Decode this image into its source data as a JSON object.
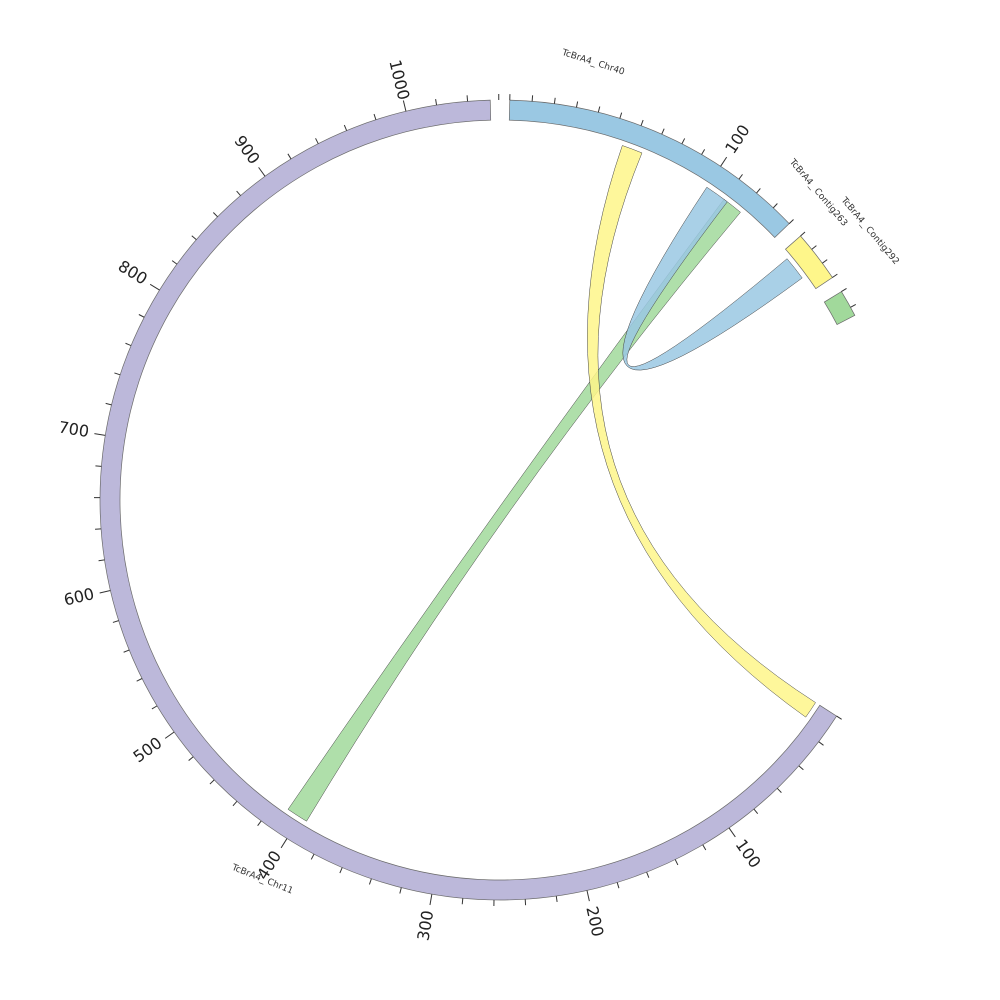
{
  "chart_data": {
    "type": "chord",
    "segments": [
      {
        "id": "chr11",
        "label": "TcBrA4_ Chr11",
        "length": 1080,
        "color": "#bcb8da",
        "major_ticks": [
          "100",
          "200",
          "300",
          "400",
          "500",
          "600",
          "700",
          "800",
          "900",
          "1000"
        ]
      },
      {
        "id": "chr40",
        "label": "TcBrA4_ Chr40",
        "length": 140,
        "color": "#9ac8e3",
        "major_ticks": [
          "100"
        ]
      },
      {
        "id": "contig263",
        "label": "TcBrA4_ Contig263",
        "length": 30,
        "color": "#fef68a",
        "major_ticks": []
      },
      {
        "id": "contig292",
        "label": "TcBrA4_ Contig292",
        "length": 15,
        "color": "#a1d99b",
        "major_ticks": []
      }
    ],
    "links": [
      {
        "from": "chr40",
        "from_start": 110,
        "from_end": 120,
        "to": "chr11",
        "to_start": 395,
        "to_end": 410,
        "color": "#a1d99b"
      },
      {
        "from": "chr40",
        "from_start": 100,
        "from_end": 112,
        "to": "contig263",
        "to_start": 5,
        "to_end": 20,
        "color": "#9ac8e3"
      },
      {
        "from": "chr40",
        "from_start": 55,
        "from_end": 65,
        "to": "chr11",
        "to_start": 0,
        "to_end": 12,
        "color": "#fef68a"
      }
    ]
  }
}
